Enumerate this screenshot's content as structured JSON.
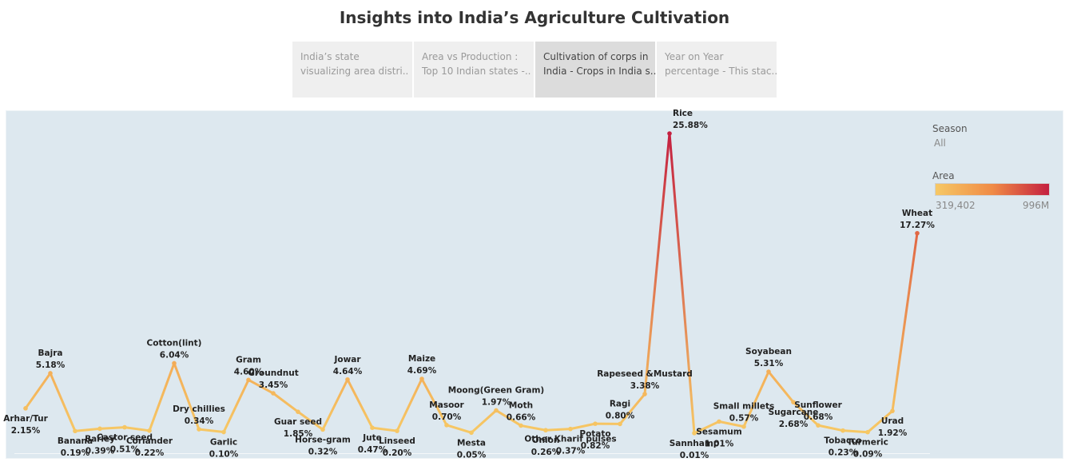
{
  "title": "Insights into India’s Agriculture Cultivation",
  "tabs": [
    {
      "line1": "India’s state",
      "line2": "visualizing area distri..",
      "active": false
    },
    {
      "line1": "Area vs Production :",
      "line2": "Top 10 Indian states -..",
      "active": false
    },
    {
      "line1": "Cultivation of corps in",
      "line2": "India - Crops in India s..",
      "active": true
    },
    {
      "line1": "Year on Year",
      "line2": "percentage - This stac..",
      "active": false
    }
  ],
  "legend": {
    "season_title": "Season",
    "season_value": "All",
    "area_title": "Area",
    "area_min": "319,402",
    "area_max": "996M",
    "color_low": "#f6c865",
    "color_mid": "#f08b46",
    "color_high": "#c42040"
  },
  "chart_data": {
    "type": "line",
    "title": "Cultivation of corps in India",
    "xlabel": "",
    "ylabel": "",
    "grid": false,
    "value_unit": "% of total area",
    "categories": [
      "Arhar/Tur",
      "Bajra",
      "Banana",
      "Barley",
      "Castor seed",
      "Coriander",
      "Cotton(lint)",
      "Dry chillies",
      "Garlic",
      "Gram",
      "Groundnut",
      "Guar seed",
      "Horse-gram",
      "Jowar",
      "Jute",
      "Linseed",
      "Maize",
      "Masoor",
      "Mesta",
      "Moong(Green Gram)",
      "Moth",
      "Onion",
      "Other Kharif pulses",
      "Potato",
      "Ragi",
      "Rapeseed &Mustard",
      "Rice",
      "Sannhamp",
      "Sesamum",
      "Small millets",
      "Soyabean",
      "Sugarcane",
      "Sunflower",
      "Tobacco",
      "Turmeric",
      "Urad",
      "Wheat"
    ],
    "values": [
      2.15,
      5.18,
      0.19,
      0.39,
      0.51,
      0.22,
      6.04,
      0.34,
      0.1,
      4.6,
      3.45,
      1.85,
      0.32,
      4.64,
      0.47,
      0.2,
      4.69,
      0.7,
      0.05,
      1.97,
      0.66,
      0.26,
      0.37,
      0.82,
      0.8,
      3.38,
      25.88,
      0.01,
      1.01,
      0.57,
      5.31,
      2.68,
      0.68,
      0.23,
      0.09,
      1.92,
      17.27
    ],
    "labels": [
      "2.15%",
      "5.18%",
      "0.19%",
      "0.39%",
      "0.51%",
      "0.22%",
      "6.04%",
      "0.34%",
      "0.10%",
      "4.60%",
      "3.45%",
      "1.85%",
      "0.32%",
      "4.64%",
      "0.47%",
      "0.20%",
      "4.69%",
      "0.70%",
      "0.05%",
      "1.97%",
      "0.66%",
      "0.26%",
      "0.37%",
      "0.82%",
      "0.80%",
      "3.38%",
      "25.88%",
      "0.01%",
      "1.01%",
      "0.57%",
      "5.31%",
      "2.68%",
      "0.68%",
      "0.23%",
      "0.09%",
      "1.92%",
      "17.27%"
    ],
    "label_position": [
      "below",
      "above",
      "below",
      "below",
      "below",
      "below",
      "above",
      "above",
      "below",
      "above",
      "above",
      "below",
      "below",
      "above",
      "below",
      "below",
      "above",
      "above",
      "below",
      "above",
      "above",
      "below",
      "below",
      "below",
      "above",
      "above",
      "above",
      "below",
      "below",
      "above",
      "above",
      "below",
      "above",
      "below",
      "below",
      "below",
      "above"
    ],
    "ylim": [
      0,
      27
    ]
  }
}
